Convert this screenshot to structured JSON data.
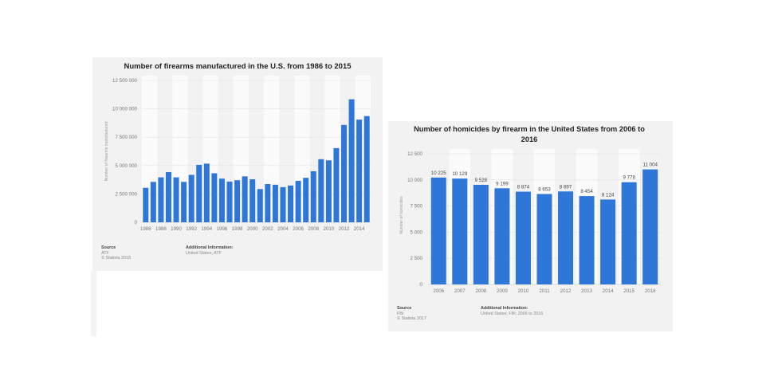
{
  "chart_data": [
    {
      "type": "bar",
      "title": "Number of firearms manufactured in the U.S. from 1986 to 2015",
      "ylabel": "Number of firearms manufactured",
      "x": [
        1986,
        1987,
        1988,
        1989,
        1990,
        1991,
        1992,
        1993,
        1994,
        1995,
        1996,
        1997,
        1998,
        1999,
        2000,
        2001,
        2002,
        2003,
        2004,
        2005,
        2006,
        2007,
        2008,
        2009,
        2010,
        2011,
        2012,
        2013,
        2014,
        2015
      ],
      "xtick_labels": [
        "1986",
        "1988",
        "1990",
        "1992",
        "1994",
        "1996",
        "1998",
        "2000",
        "2002",
        "2004",
        "2006",
        "2008",
        "2010",
        "2012",
        "2014"
      ],
      "values": [
        3040000,
        3560000,
        3960000,
        4420000,
        3960000,
        3560000,
        4180000,
        5060000,
        5170000,
        4320000,
        3850000,
        3590000,
        3710000,
        4050000,
        3790000,
        2930000,
        3370000,
        3310000,
        3100000,
        3240000,
        3650000,
        3920000,
        4500000,
        5560000,
        5460000,
        6540000,
        8580000,
        10840000,
        9050000,
        9360000
      ],
      "yticks": [
        0,
        2500000,
        5000000,
        7500000,
        10000000,
        12500000
      ],
      "ytick_labels": [
        "0",
        "2 500 000",
        "5 000 000",
        "7 500 000",
        "10 000 000",
        "12 500 000"
      ],
      "ylim": [
        0,
        12500000
      ],
      "grid": true,
      "color": "#2e76d8"
    },
    {
      "type": "bar",
      "title": "Number of homicides by firearm in the United States from 2006 to 2016",
      "ylabel": "Number of homicides",
      "x": [
        2006,
        2007,
        2008,
        2009,
        2010,
        2011,
        2012,
        2013,
        2014,
        2015,
        2016
      ],
      "xtick_labels": [
        "2006",
        "2007",
        "2008",
        "2009",
        "2010",
        "2011",
        "2012",
        "2013",
        "2014",
        "2015",
        "2016"
      ],
      "values": [
        10225,
        10129,
        9528,
        9199,
        8874,
        8653,
        8897,
        8454,
        8124,
        9778,
        11004
      ],
      "data_labels": [
        "10 225",
        "10 129",
        "9 528",
        "9 199",
        "8 874",
        "8 653",
        "8 897",
        "8 454",
        "8 124",
        "9 778",
        "11 004"
      ],
      "yticks": [
        0,
        2500,
        5000,
        7500,
        10000,
        12500
      ],
      "ytick_labels": [
        "0",
        "2 500",
        "5 000",
        "7 500",
        "10 000",
        "12 500"
      ],
      "ylim": [
        0,
        12500
      ],
      "grid": true,
      "color": "#2e76d8"
    }
  ],
  "footers": [
    {
      "source_heading": "Source",
      "source": "ATF",
      "copyright": "© Statista 2018",
      "info_heading": "Additional Information:",
      "info": "United States; ATF"
    },
    {
      "source_heading": "Source",
      "source": "FBI",
      "copyright": "© Statista 2017",
      "info_heading": "Additional Information:",
      "info": "United States; FBI; 2006 to 2016"
    }
  ],
  "colors": {
    "bar": "#2e76d8",
    "panel": "#f2f2f2"
  }
}
